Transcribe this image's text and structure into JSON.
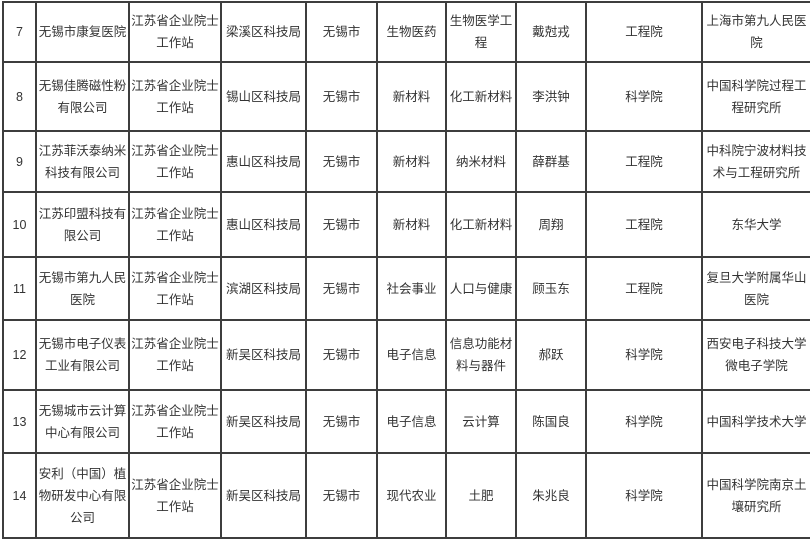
{
  "colors": {
    "border": "#3d3d3d",
    "text": "#333333",
    "background": "#ffffff"
  },
  "table": {
    "visible_row_numbers": [
      "7",
      "8",
      "9",
      "10",
      "11",
      "12",
      "13",
      "14"
    ],
    "rows": [
      [
        "7",
        "无锡市康复医院",
        "江苏省企业院士工作站",
        "梁溪区科技局",
        "无锡市",
        "生物医药",
        "生物医学工程",
        "戴尅戎",
        "工程院",
        "上海市第九人民医院"
      ],
      [
        "8",
        "无锡佳腾磁性粉有限公司",
        "江苏省企业院士工作站",
        "锡山区科技局",
        "无锡市",
        "新材料",
        "化工新材料",
        "李洪钟",
        "科学院",
        "中国科学院过程工程研究所"
      ],
      [
        "9",
        "江苏菲沃泰纳米科技有限公司",
        "江苏省企业院士工作站",
        "惠山区科技局",
        "无锡市",
        "新材料",
        "纳米材料",
        "薛群基",
        "工程院",
        "中科院宁波材料技术与工程研究所"
      ],
      [
        "10",
        "江苏印盟科技有限公司",
        "江苏省企业院士工作站",
        "惠山区科技局",
        "无锡市",
        "新材料",
        "化工新材料",
        "周翔",
        "工程院",
        "东华大学"
      ],
      [
        "11",
        "无锡市第九人民医院",
        "江苏省企业院士工作站",
        "滨湖区科技局",
        "无锡市",
        "社会事业",
        "人口与健康",
        "顾玉东",
        "工程院",
        "复旦大学附属华山医院"
      ],
      [
        "12",
        "无锡市电子仪表工业有限公司",
        "江苏省企业院士工作站",
        "新吴区科技局",
        "无锡市",
        "电子信息",
        "信息功能材料与器件",
        "郝跃",
        "科学院",
        "西安电子科技大学微电子学院"
      ],
      [
        "13",
        "无锡城市云计算中心有限公司",
        "江苏省企业院士工作站",
        "新吴区科技局",
        "无锡市",
        "电子信息",
        "云计算",
        "陈国良",
        "科学院",
        "中国科学技术大学"
      ],
      [
        "14",
        "安利（中国）植物研发中心有限公司",
        "江苏省企业院士工作站",
        "新吴区科技局",
        "无锡市",
        "现代农业",
        "土肥",
        "朱兆良",
        "科学院",
        "中国科学院南京土壤研究所"
      ]
    ]
  }
}
